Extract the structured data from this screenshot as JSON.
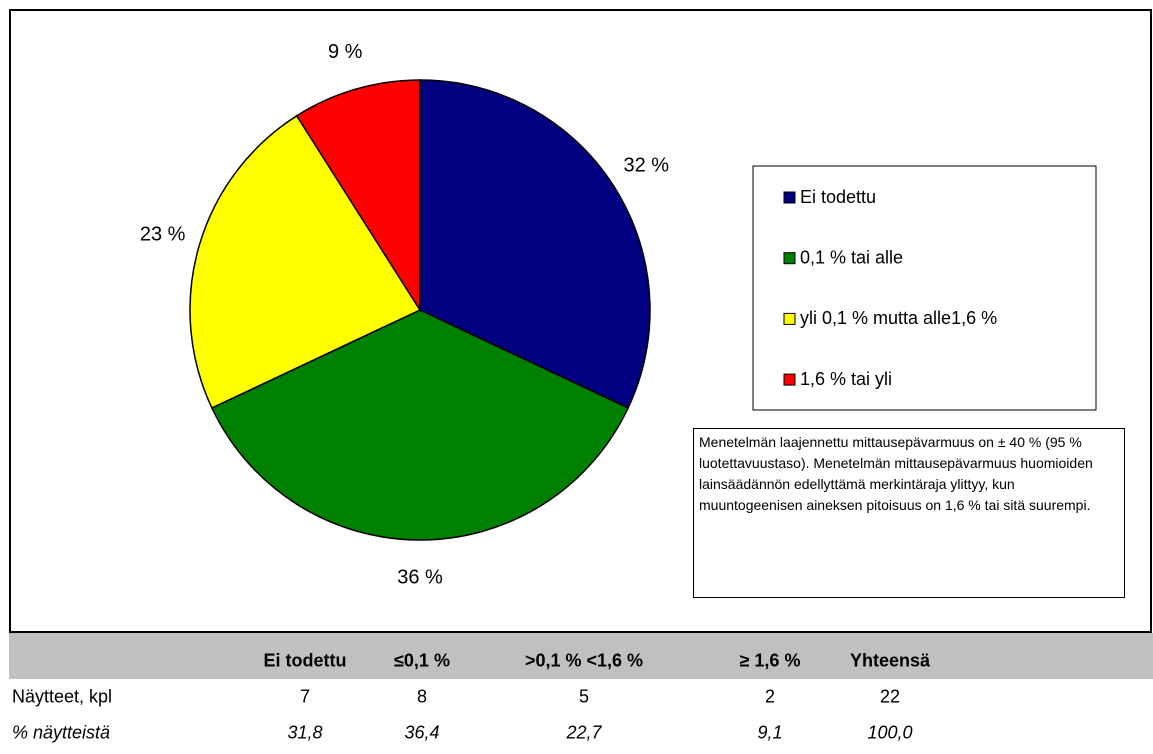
{
  "chart_data": {
    "type": "pie",
    "categories": [
      "Ei todettu",
      "0,1 % tai alle",
      "yli 0,1 % mutta alle1,6 %",
      "1,6 % tai yli"
    ],
    "values": [
      32,
      36,
      23,
      9
    ],
    "value_labels": [
      "32 %",
      "36 %",
      "23 %",
      "9 %"
    ],
    "colors": [
      "#000080",
      "#008000",
      "#ffff00",
      "#ff0000"
    ],
    "legend": "right",
    "annotation": "Menetelmän laajennettu mittausepävarmuus on ± 40 % (95 % luotettavuustaso). Menetelmän mittausepävarmuus huomioiden lainsäädännön edellyttämä merkintäraja ylittyy, kun muuntogeenisen aineksen pitoisuus on 1,6 % tai sitä suurempi."
  },
  "table": {
    "columns": [
      "Ei todettu",
      "≤0,1 %",
      ">0,1 % <1,6 %",
      "≥ 1,6 %",
      "Yhteensä"
    ],
    "rows": [
      {
        "label": "Näytteet, kpl",
        "cells": [
          7,
          8,
          5,
          2,
          22
        ]
      },
      {
        "label": "% näytteistä",
        "cells": [
          "31,8",
          "36,4",
          "22,7",
          "9,1",
          "100,0"
        ]
      }
    ]
  }
}
